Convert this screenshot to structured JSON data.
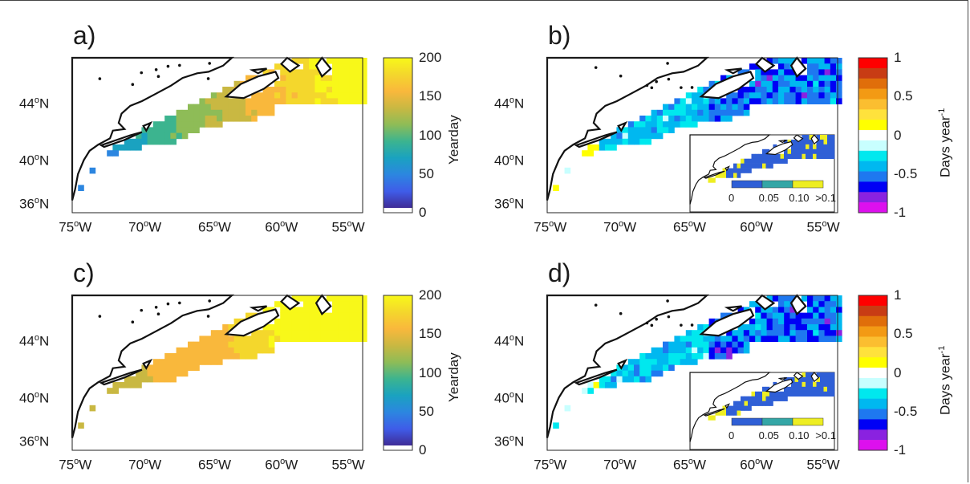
{
  "panels": [
    {
      "label": "a)",
      "type": "yearday"
    },
    {
      "label": "b)",
      "type": "trend"
    },
    {
      "label": "c)",
      "type": "yearday"
    },
    {
      "label": "d)",
      "type": "trend"
    }
  ],
  "map_axes": {
    "lat_ticks": [
      "44",
      "40",
      "36"
    ],
    "lon_ticks": [
      "75",
      "70",
      "65",
      "60",
      "55"
    ],
    "deg_symbol": "o",
    "lat_suffix": "N",
    "lon_suffix": "W"
  },
  "yearday_colorbar": {
    "title": "Yearday",
    "ticks": [
      "200",
      "150",
      "100",
      "50",
      "0"
    ],
    "colors": [
      "#f8f819",
      "#f4d72c",
      "#f9b83c",
      "#c9b842",
      "#8ebc57",
      "#3cb48f",
      "#1aa2c0",
      "#2c86e0",
      "#3f5ce8",
      "#3f2b96",
      "#ffffff"
    ]
  },
  "trend_colorbar": {
    "title": "Days year",
    "title_exp": "-1",
    "ticks": [
      "1",
      "0.5",
      "0",
      "-0.5",
      "-1"
    ],
    "colors": [
      "#ff0000",
      "#c83c14",
      "#e06e0a",
      "#f39a14",
      "#fbbe30",
      "#ffe23c",
      "#ffff00",
      "#ffffff",
      "#c8ffff",
      "#00e8ee",
      "#00b8f0",
      "#1e78f0",
      "#0000f5",
      "#8a22e0",
      "#dd10ee"
    ]
  },
  "inset_colorbar": {
    "ticks": [
      "0",
      "0.05",
      "0.10",
      ">0.1"
    ],
    "colors": [
      "#2f5fd6",
      "#34a6a6",
      "#eeee22"
    ]
  }
}
